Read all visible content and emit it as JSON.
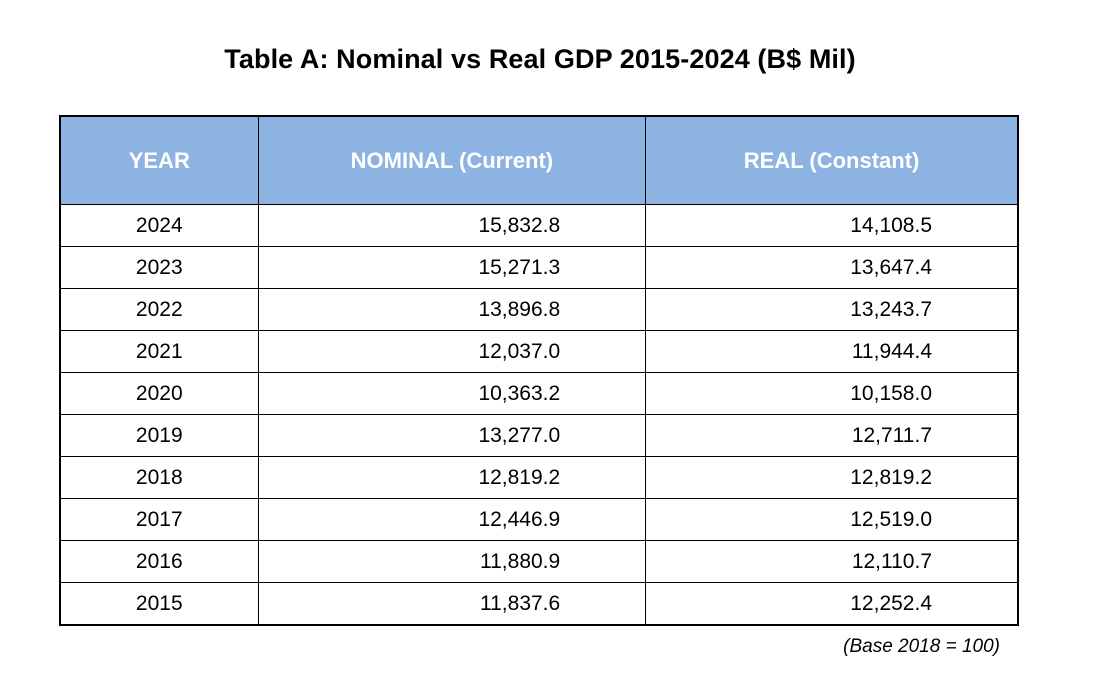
{
  "chart_data": {
    "type": "table",
    "title": "Table A: Nominal vs Real GDP 2015-2024 (B$ Mil)",
    "columns": [
      "YEAR",
      "NOMINAL (Current)",
      "REAL (Constant)"
    ],
    "rows": [
      {
        "year": "2024",
        "nominal": "15,832.8",
        "real": "14,108.5"
      },
      {
        "year": "2023",
        "nominal": "15,271.3",
        "real": "13,647.4"
      },
      {
        "year": "2022",
        "nominal": "13,896.8",
        "real": "13,243.7"
      },
      {
        "year": "2021",
        "nominal": "12,037.0",
        "real": "11,944.4"
      },
      {
        "year": "2020",
        "nominal": "10,363.2",
        "real": "10,158.0"
      },
      {
        "year": "2019",
        "nominal": "13,277.0",
        "real": "12,711.7"
      },
      {
        "year": "2018",
        "nominal": "12,819.2",
        "real": "12,819.2"
      },
      {
        "year": "2017",
        "nominal": "12,446.9",
        "real": "12,519.0"
      },
      {
        "year": "2016",
        "nominal": "11,880.9",
        "real": "12,110.7"
      },
      {
        "year": "2015",
        "nominal": "11,837.6",
        "real": "12,252.4"
      }
    ],
    "note": "(Base 2018 = 100)",
    "colors": {
      "header_background": "#8db3e2",
      "header_text": "#ffffff",
      "border": "#000000"
    }
  }
}
